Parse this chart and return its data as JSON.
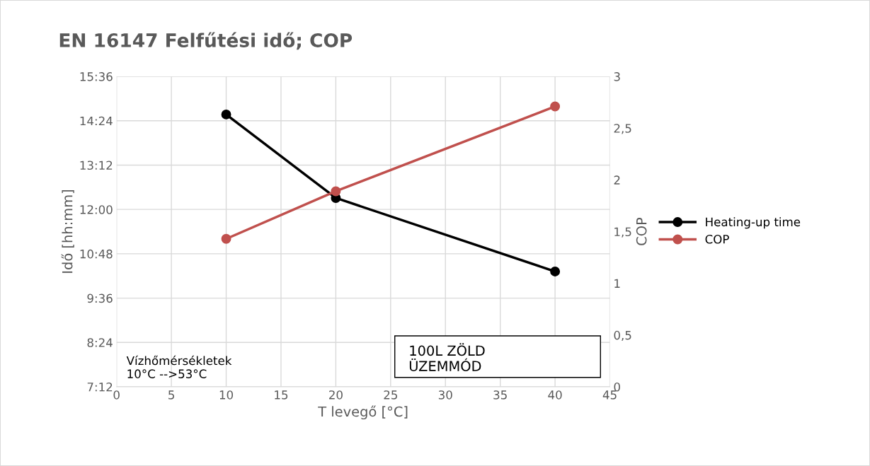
{
  "chart_data": {
    "type": "line",
    "title": "EN 16147 Felfűtési idő; COP",
    "xlabel": "T levegő [°C]",
    "ylabel": "Idő [hh:mm]",
    "y2label": "COP",
    "x": [
      10,
      20,
      40
    ],
    "series": [
      {
        "name": "Heating-up time",
        "color": "#000000",
        "values": [
          14.57,
          12.31,
          10.32
        ]
      },
      {
        "name": "COP",
        "color": "#c0504d",
        "values": [
          1.43,
          1.89,
          2.71
        ],
        "axis": "y2"
      }
    ],
    "xlim": [
      0,
      45
    ],
    "xticks": [
      0,
      5,
      10,
      15,
      20,
      25,
      30,
      35,
      40,
      45
    ],
    "ylim": [
      7.2,
      15.6
    ],
    "yticks": [
      {
        "value": 7.2,
        "label": "7:12"
      },
      {
        "value": 8.4,
        "label": "8:24"
      },
      {
        "value": 9.6,
        "label": "9:36"
      },
      {
        "value": 10.8,
        "label": "10:48"
      },
      {
        "value": 12.0,
        "label": "12:00"
      },
      {
        "value": 13.2,
        "label": "13:12"
      },
      {
        "value": 14.4,
        "label": "14:24"
      },
      {
        "value": 15.6,
        "label": "15:36"
      }
    ],
    "y2lim": [
      0,
      3
    ],
    "y2ticks": [
      0,
      {
        "value": 0.5,
        "label": "0,5"
      },
      1,
      {
        "value": 1.5,
        "label": "1,5"
      },
      2,
      {
        "value": 2.5,
        "label": "2,5"
      },
      3
    ],
    "annotations": [
      "Vízhőmérsékletek\n10°C -->53°C",
      "100L ZÖLD\nÜZEMMÓD"
    ],
    "grid": true,
    "legend": "right",
    "marker": "circle",
    "line_style": "solid"
  }
}
